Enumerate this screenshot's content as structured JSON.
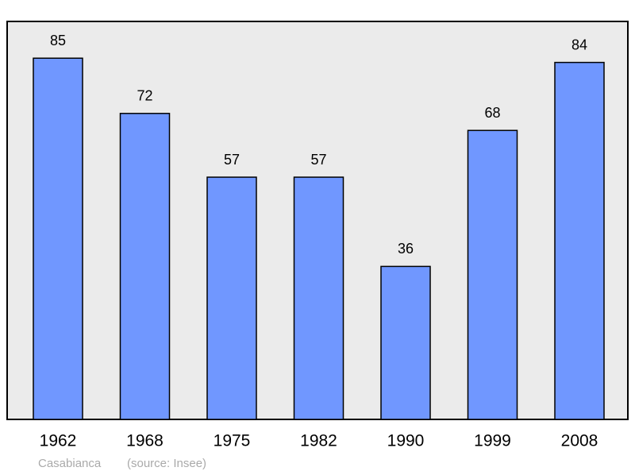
{
  "chart_data": {
    "type": "bar",
    "categories": [
      "1962",
      "1968",
      "1975",
      "1982",
      "1990",
      "1999",
      "2008"
    ],
    "values": [
      85,
      72,
      57,
      57,
      36,
      68,
      84
    ],
    "color": "#7097ff",
    "caption": "Casabianca",
    "source": "(source: Insee)"
  }
}
